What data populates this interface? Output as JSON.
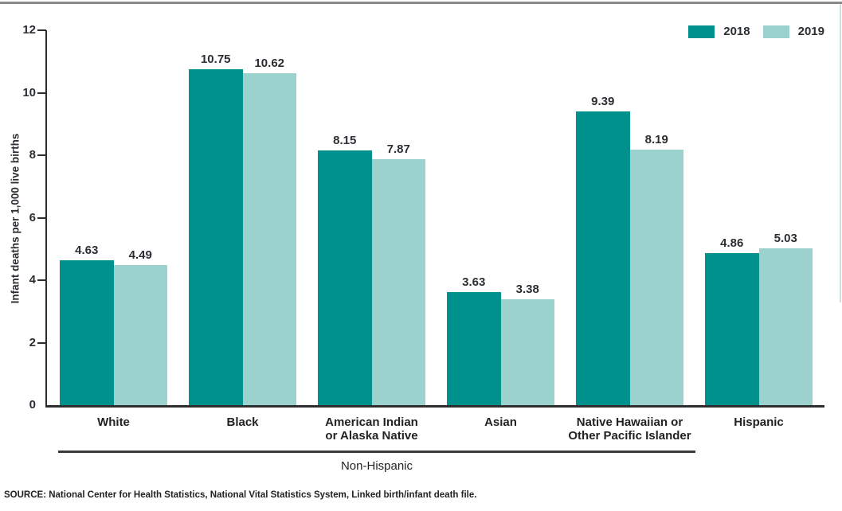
{
  "page": {
    "source_note": "SOURCE: National Center for Health Statistics, National Vital Statistics System, Linked birth/infant death file."
  },
  "colors": {
    "series_2018": "#00918C",
    "series_2019": "#9CD2CE",
    "axis": "#2E2E2E",
    "top_rule": "#8A8A8A",
    "text": "#2B2F33"
  },
  "chart_data": {
    "type": "bar",
    "title": "",
    "ylabel": "Infant deaths per 1,000 live births",
    "xlabel": "",
    "ylim": [
      0,
      12
    ],
    "yticks": [
      0,
      2,
      4,
      6,
      8,
      10,
      12
    ],
    "grid": false,
    "legend_position": "top-right",
    "categories": [
      "White",
      "Black",
      "American Indian or Alaska Native",
      "Asian",
      "Native Hawaiian or Other Pacific Islander",
      "Hispanic"
    ],
    "categories_display": [
      [
        "White"
      ],
      [
        "Black"
      ],
      [
        "American Indian",
        "or Alaska Native"
      ],
      [
        "Asian"
      ],
      [
        "Native Hawaiian or",
        "Other Pacific Islander"
      ],
      [
        "Hispanic"
      ]
    ],
    "series": [
      {
        "name": "2018",
        "color": "#00918C",
        "values": [
          4.63,
          10.75,
          8.15,
          3.63,
          9.39,
          4.86
        ]
      },
      {
        "name": "2019",
        "color": "#9CD2CE",
        "values": [
          4.49,
          10.62,
          7.87,
          3.38,
          8.19,
          5.03
        ]
      }
    ],
    "group_annotation": {
      "label": "Non-Hispanic",
      "covers": [
        "White",
        "Black",
        "American Indian or Alaska Native",
        "Asian",
        "Native Hawaiian or Other Pacific Islander"
      ],
      "span_category_indices": [
        0,
        4
      ]
    }
  }
}
